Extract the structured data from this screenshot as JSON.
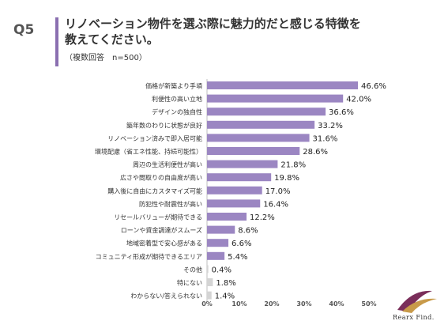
{
  "header": {
    "question_label": "Q5",
    "title_lines": [
      "リノベーション物件を選ぶ際に魅力的だと感じる特徴を",
      "教えてください。"
    ],
    "subtitle": "（複数回答　n=500）"
  },
  "brand": {
    "logo_text": "Rearx Find."
  },
  "colors": {
    "bar": "#9b86c2",
    "bar_muted": "#d4d4d4",
    "accent": "#8a6fb0"
  },
  "chart_data": {
    "type": "bar",
    "orientation": "horizontal",
    "title": "",
    "xlabel": "",
    "ylabel": "",
    "xlim": [
      0,
      50
    ],
    "grid": false,
    "categories": [
      "価格が新築より手頃",
      "利便性の高い立地",
      "デザインの独自性",
      "築年数のわりに状態が良好",
      "リノベーション済みで即入居可能",
      "環境配慮（省エネ性能、持続可能性）",
      "周辺の生活利便性が高い",
      "広さや間取りの自由度が高い",
      "購入後に自由にカスタマイズ可能",
      "防犯性や耐震性が高い",
      "リセールバリューが期待できる",
      "ローンや資金調達がスムーズ",
      "地域密着型で安心感がある",
      "コミュニティ形成が期待できるエリア",
      "その他",
      "特にない",
      "わからない/答えられない"
    ],
    "values": [
      46.6,
      42.0,
      36.6,
      33.2,
      31.6,
      28.6,
      21.8,
      19.8,
      17.0,
      16.4,
      12.2,
      8.6,
      6.6,
      5.4,
      0.4,
      1.8,
      1.4
    ],
    "value_labels": [
      "46.6%",
      "42.0%",
      "36.6%",
      "33.2%",
      "31.6%",
      "28.6%",
      "21.8%",
      "19.8%",
      "17.0%",
      "16.4%",
      "12.2%",
      "8.6%",
      "6.6%",
      "5.4%",
      "0.4%",
      "1.8%",
      "1.4%"
    ],
    "muted": [
      false,
      false,
      false,
      false,
      false,
      false,
      false,
      false,
      false,
      false,
      false,
      false,
      false,
      false,
      true,
      true,
      true
    ],
    "x_ticks": [
      0,
      10,
      20,
      30,
      40,
      50
    ],
    "x_tick_labels": [
      "0%",
      "10%",
      "20%",
      "30%",
      "40%",
      "50%"
    ]
  }
}
